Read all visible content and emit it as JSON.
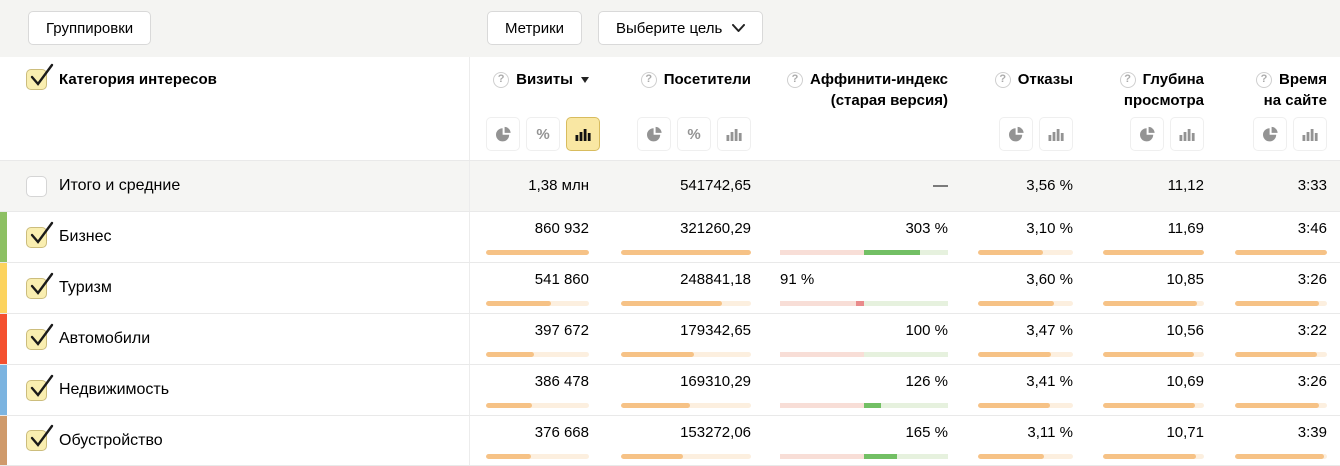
{
  "toolbar": {
    "groupings_label": "Группировки",
    "metrics_label": "Метрики",
    "goal_label": "Выберите цель"
  },
  "colors": {
    "bar_fill": "#f6c286",
    "bar_track": "#fcefdf",
    "affinity_green_fill": "#72bf64",
    "affinity_green_track": "#e6f1de",
    "affinity_red_fill": "#e98b8b",
    "affinity_red_track": "#f8ded7",
    "toggle_active_bg": "#f9e7a3",
    "toggle_active_border": "#d8bc5e",
    "toolbar_bg": "#f4f4f2",
    "totals_row_bg": "#f5f5f3"
  },
  "icons": {
    "pie": "pie-chart-icon",
    "percent": "percent-icon",
    "bars": "bar-chart-icon",
    "help": "help-icon",
    "sort": "sort-desc-icon",
    "chevron": "chevron-down-icon",
    "check": "checkmark-icon"
  },
  "table": {
    "category_header": "Категория интересов",
    "columns": [
      {
        "key": "visits",
        "label": "Визиты",
        "label2": "",
        "sorted": true,
        "toggles": [
          "pie",
          "percent",
          "bars"
        ],
        "active_toggle": "bars",
        "toggle_align": "left-overhang"
      },
      {
        "key": "visitors",
        "label": "Посетители",
        "label2": "",
        "sorted": false,
        "toggles": [
          "pie",
          "percent",
          "bars"
        ],
        "active_toggle": null,
        "toggle_align": "right"
      },
      {
        "key": "affinity",
        "label": "Аффинити-индекс",
        "label2": "(старая версия)",
        "sorted": false,
        "toggles": [],
        "active_toggle": null,
        "toggle_align": "right"
      },
      {
        "key": "bounce",
        "label": "Отказы",
        "label2": "",
        "sorted": false,
        "toggles": [
          "pie",
          "bars"
        ],
        "active_toggle": null,
        "toggle_align": "right"
      },
      {
        "key": "depth",
        "label": "Глубина",
        "label2": "просмотра",
        "sorted": false,
        "toggles": [
          "pie",
          "bars"
        ],
        "active_toggle": null,
        "toggle_align": "right"
      },
      {
        "key": "time",
        "label": "Время",
        "label2": "на сайте",
        "sorted": false,
        "toggles": [
          "pie",
          "bars"
        ],
        "active_toggle": null,
        "toggle_align": "right"
      }
    ],
    "totals": {
      "label": "Итого и средние",
      "checked": false,
      "visits": "1,38 млн",
      "visitors": "541742,65",
      "affinity": "—",
      "bounce": "3,56 %",
      "depth": "11,12",
      "time": "3:33"
    },
    "rows": [
      {
        "label": "Бизнес",
        "checked": true,
        "stripe_color": "#8dc063",
        "visits": {
          "text": "860 932",
          "bar": 1.0
        },
        "visitors": {
          "text": "321260,29",
          "bar": 1.0
        },
        "affinity": {
          "text": "303 %",
          "value": 303
        },
        "bounce": {
          "text": "3,10 %",
          "bar": 0.689
        },
        "depth": {
          "text": "11,69",
          "bar": 1.0
        },
        "time": {
          "text": "3:46",
          "bar": 1.0
        }
      },
      {
        "label": "Туризм",
        "checked": true,
        "stripe_color": "#fcd35e",
        "visits": {
          "text": "541 860",
          "bar": 0.63
        },
        "visitors": {
          "text": "248841,18",
          "bar": 0.775
        },
        "affinity": {
          "text": "91 %",
          "value": 91
        },
        "bounce": {
          "text": "3,60 %",
          "bar": 0.8
        },
        "depth": {
          "text": "10,85",
          "bar": 0.928
        },
        "time": {
          "text": "3:26",
          "bar": 0.912
        }
      },
      {
        "label": "Автомобили",
        "checked": true,
        "stripe_color": "#f4502f",
        "visits": {
          "text": "397 672",
          "bar": 0.462
        },
        "visitors": {
          "text": "179342,65",
          "bar": 0.558
        },
        "affinity": {
          "text": "100 %",
          "value": 100
        },
        "bounce": {
          "text": "3,47 %",
          "bar": 0.771
        },
        "depth": {
          "text": "10,56",
          "bar": 0.903
        },
        "time": {
          "text": "3:22",
          "bar": 0.894
        }
      },
      {
        "label": "Недвижимость",
        "checked": true,
        "stripe_color": "#7cb4e0",
        "visits": {
          "text": "386 478",
          "bar": 0.449
        },
        "visitors": {
          "text": "169310,29",
          "bar": 0.527
        },
        "affinity": {
          "text": "126 %",
          "value": 126
        },
        "bounce": {
          "text": "3,41 %",
          "bar": 0.758
        },
        "depth": {
          "text": "10,69",
          "bar": 0.914
        },
        "time": {
          "text": "3:26",
          "bar": 0.912
        }
      },
      {
        "label": "Обустройство",
        "checked": true,
        "stripe_color": "#cf9a6b",
        "visits": {
          "text": "376 668",
          "bar": 0.437
        },
        "visitors": {
          "text": "153272,06",
          "bar": 0.477
        },
        "affinity": {
          "text": "165 %",
          "value": 165
        },
        "bounce": {
          "text": "3,11 %",
          "bar": 0.691
        },
        "depth": {
          "text": "10,71",
          "bar": 0.916
        },
        "time": {
          "text": "3:39",
          "bar": 0.969
        }
      }
    ]
  }
}
